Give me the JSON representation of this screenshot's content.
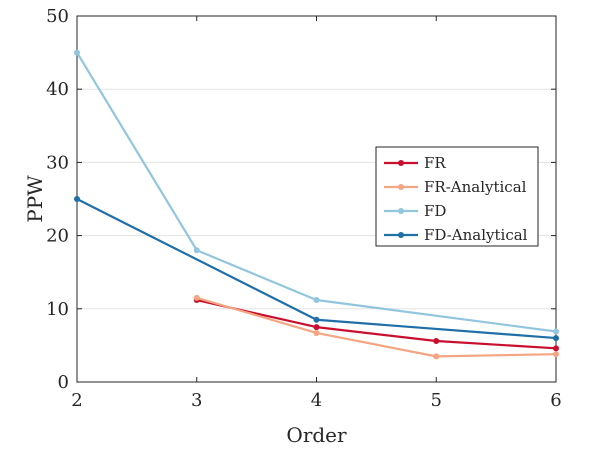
{
  "chart_data": {
    "type": "line",
    "title": "",
    "xlabel": "Order",
    "ylabel": "PPW",
    "xlim": [
      2,
      6
    ],
    "ylim": [
      0,
      50
    ],
    "xticks": [
      2,
      3,
      4,
      5,
      6
    ],
    "yticks": [
      0,
      10,
      20,
      30,
      40,
      50
    ],
    "grid": "horizontal",
    "legend_position": "right",
    "series": [
      {
        "name": "FR",
        "color": "#c8102e",
        "x": [
          3,
          4,
          5,
          6
        ],
        "y": [
          11.2,
          7.5,
          5.6,
          4.6
        ]
      },
      {
        "name": "FR-Analytical",
        "color": "#f4a582",
        "x": [
          3,
          4,
          5,
          6
        ],
        "y": [
          11.5,
          6.7,
          3.5,
          3.8
        ]
      },
      {
        "name": "FD",
        "color": "#92c5de",
        "x": [
          2,
          3,
          4,
          6
        ],
        "y": [
          45,
          18,
          11.2,
          6.9
        ]
      },
      {
        "name": "FD-Analytical",
        "color": "#1f6fa8",
        "x": [
          2,
          4,
          6
        ],
        "y": [
          25,
          8.5,
          6
        ]
      }
    ]
  }
}
